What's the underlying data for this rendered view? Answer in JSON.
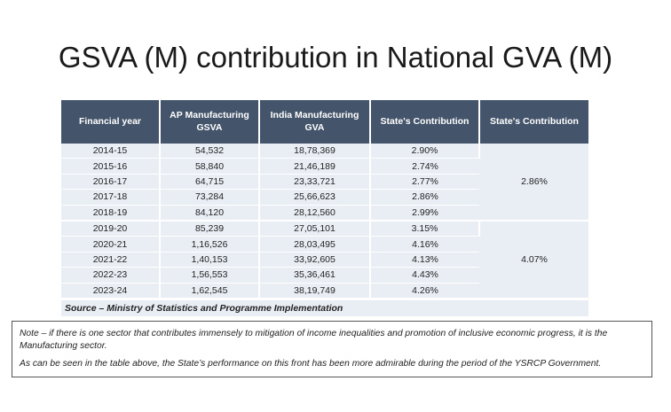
{
  "title": "GSVA (M) contribution in National GVA (M)",
  "table": {
    "headers": [
      "Financial year",
      "AP Manufacturing GSVA",
      "India Manufacturing GVA",
      "State's Contribution",
      "State's Contribution"
    ],
    "rows": [
      [
        "2014-15",
        "54,532",
        "18,78,369",
        "2.90%"
      ],
      [
        "2015-16",
        "58,840",
        "21,46,189",
        "2.74%"
      ],
      [
        "2016-17",
        "64,715",
        "23,33,721",
        "2.77%"
      ],
      [
        "2017-18",
        "73,284",
        "25,66,623",
        "2.86%"
      ],
      [
        "2018-19",
        "84,120",
        "28,12,560",
        "2.99%"
      ],
      [
        "2019-20",
        "85,239",
        "27,05,101",
        "3.15%"
      ],
      [
        "2020-21",
        "1,16,526",
        "28,03,495",
        "4.16%"
      ],
      [
        "2021-22",
        "1,40,153",
        "33,92,605",
        "4.13%"
      ],
      [
        "2022-23",
        "1,56,553",
        "35,36,461",
        "4.43%"
      ],
      [
        "2023-24",
        "1,62,545",
        "38,19,749",
        "4.26%"
      ]
    ],
    "group_contributions": [
      "2.86%",
      "4.07%"
    ],
    "source": "Source – Ministry of Statistics and Programme Implementation"
  },
  "note": {
    "line1": "Note – if there is one sector that contributes immensely to mitigation of income inequalities and promotion of inclusive economic progress, it is the Manufacturing sector.",
    "line2": "As can be seen in the table above, the State’s performance on this front has been more admirable during the period of the YSRCP Government."
  }
}
